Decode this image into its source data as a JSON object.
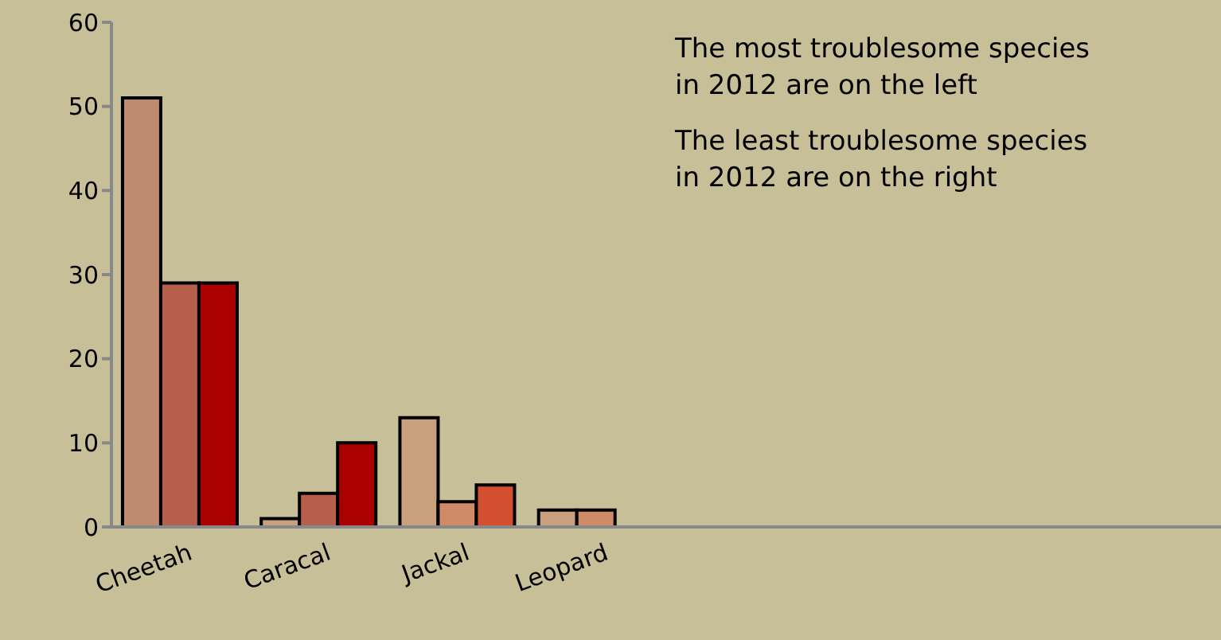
{
  "chart_data": {
    "type": "bar",
    "categories": [
      "Cheetah",
      "Caracal",
      "Jackal",
      "Leopard",
      null,
      null,
      null,
      null
    ],
    "series": [
      {
        "colors": [
          "#be8b6e",
          "#c9a07e",
          "#c9a07e",
          "#c9a07e",
          null,
          null,
          null,
          null
        ],
        "values": [
          51,
          1,
          13,
          2,
          null,
          null,
          null,
          null
        ]
      },
      {
        "colors": [
          "#b55f4c",
          "#b55f4c",
          "#d08a68",
          "#d08a68",
          null,
          null,
          null,
          null
        ],
        "values": [
          29,
          4,
          3,
          2,
          null,
          null,
          null,
          null
        ]
      },
      {
        "colors": [
          "#aa0000",
          "#aa0000",
          "#d44f30",
          null,
          null,
          null,
          null,
          null
        ],
        "values": [
          29,
          10,
          5,
          null,
          null,
          null,
          null,
          null
        ]
      }
    ],
    "ylim": [
      0,
      60
    ],
    "yticks": [
      0,
      10,
      20,
      30,
      40,
      50,
      60
    ],
    "grid": false,
    "legend": false,
    "annotations": [
      "The most troublesome species\n in 2012 are on the left",
      "The least troublesome species\n in 2012 are on the right"
    ]
  }
}
